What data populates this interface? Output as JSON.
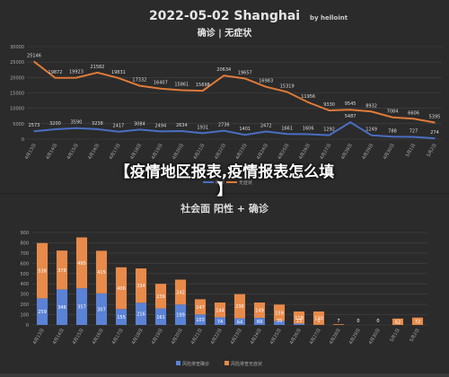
{
  "overlay_title_line1": "【疫情地区报表,疫情报表怎么填",
  "overlay_title_line2": "】",
  "chart_data": [
    {
      "type": "line",
      "title": "2022-05-02 Shanghai",
      "credit": "by helloint",
      "subtitle": "确诊 | 无症状",
      "ylim": [
        0,
        30000
      ],
      "yticks": [
        "0",
        "5000",
        "10000",
        "15000",
        "20000",
        "25000",
        "30000"
      ],
      "categories": [
        "4月13日",
        "4月14日",
        "4月15日",
        "4月16日",
        "4月17日",
        "4月18日",
        "4月19日",
        "4月20日",
        "4月21日",
        "4月22日",
        "4月23日",
        "4月24日",
        "4月25日",
        "4月26日",
        "4月27日",
        "4月28日",
        "4月29日",
        "4月30日",
        "5月1日",
        "5月2日"
      ],
      "series": [
        {
          "name": "确诊",
          "color": "#4a6fc4",
          "values": [
            2573,
            3200,
            3590,
            3238,
            2417,
            3084,
            2494,
            2634,
            1931,
            2736,
            1401,
            2472,
            1661,
            1606,
            1292,
            5487,
            1249,
            788,
            727,
            274
          ]
        },
        {
          "name": "无症状",
          "color": "#e07b39",
          "values": [
            25146,
            19872,
            19923,
            21582,
            19831,
            17332,
            16407,
            15861,
            15698,
            20634,
            19657,
            16983,
            15319,
            11956,
            9330,
            9545,
            8932,
            7084,
            6606,
            5395
          ]
        }
      ],
      "legend": "bottom"
    },
    {
      "type": "bar",
      "title": "社会面 阳性 + 确诊",
      "ylim": [
        0,
        900
      ],
      "yticks": [
        "0",
        "100",
        "200",
        "300",
        "400",
        "500",
        "600",
        "700",
        "800",
        "900"
      ],
      "categories": [
        "4月13日",
        "4月14日",
        "4月15日",
        "4月16日",
        "4月17日",
        "4月18日",
        "4月19日",
        "4月20日",
        "4月21日",
        "4月22日",
        "4月23日",
        "4月24日",
        "4月25日",
        "4月26日",
        "4月27日",
        "4月28日",
        "4月29日",
        "4月30日",
        "5月1日",
        "5月2日"
      ],
      "stacked": true,
      "series": [
        {
          "name": "风险排查确诊",
          "color": "#5a82d6",
          "values": [
            259,
            346,
            357,
            307,
            155,
            216,
            161,
            199,
            103,
            74,
            64,
            69,
            39,
            13,
            1,
            0,
            0,
            0,
            0,
            0
          ]
        },
        {
          "name": "风险排查无症状",
          "color": "#e88a4a",
          "values": [
            538,
            378,
            495,
            415,
            406,
            334,
            239,
            242,
            147,
            144,
            236,
            149,
            159,
            118,
            130,
            7,
            0,
            0,
            62,
            72
          ]
        }
      ],
      "labels_bottom": [
        "259",
        "346",
        "357",
        "307",
        "155",
        "216",
        "161",
        "199",
        "103",
        "74",
        "64",
        "69",
        "39",
        "13",
        "1",
        "",
        "",
        "",
        "",
        ""
      ],
      "labels_top": [
        "538",
        "378",
        "495",
        "415",
        "406",
        "334",
        "239",
        "242",
        "147",
        "144",
        "236",
        "149",
        "159",
        "118",
        "130",
        "7",
        "0",
        "0",
        "62",
        "72"
      ],
      "legend": "bottom"
    }
  ]
}
